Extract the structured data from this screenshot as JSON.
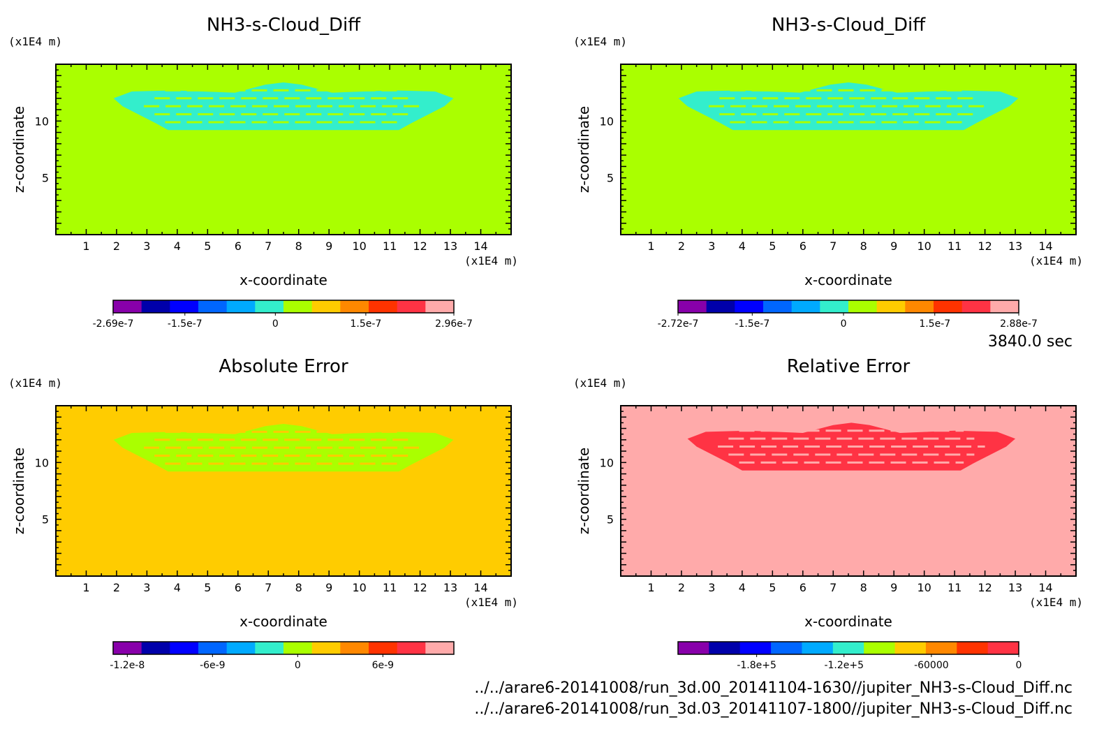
{
  "figure": {
    "time_label": "3840.0 sec",
    "footer_lines": [
      "../../arare6-20141008/run_3d.00_20141104-1630//jupiter_NH3-s-Cloud_Diff.nc",
      "../../arare6-20141008/run_3d.03_20141107-1800//jupiter_NH3-s-Cloud_Diff.nc"
    ]
  },
  "chart_data": [
    {
      "type": "heatmap",
      "title": "NH3-s-Cloud_Diff",
      "xlabel": "x-coordinate",
      "ylabel": "z-coordinate",
      "x_unit": "(x1E4 m)",
      "y_unit": "(x1E4 m)",
      "xlim": [
        0,
        15
      ],
      "ylim": [
        0,
        15
      ],
      "x_ticks": [
        1,
        2,
        3,
        4,
        5,
        6,
        7,
        8,
        9,
        10,
        11,
        12,
        13,
        14
      ],
      "y_ticks": [
        5,
        10
      ],
      "field": {
        "background": "#aaff00",
        "pattern": "#33eecc",
        "pattern_extent_x": [
          1.9,
          13.1
        ],
        "pattern_extent_z": [
          9.2,
          13.4
        ]
      },
      "colorbar": {
        "colors": [
          "#8800aa",
          "#0000aa",
          "#0000ff",
          "#0066ff",
          "#00aaff",
          "#33eecc",
          "#aaff00",
          "#ffcc00",
          "#ff8800",
          "#ff3300",
          "#ff3344",
          "#ffaaaa"
        ],
        "labels": [
          "-2.69e-7",
          "-1.5e-7",
          "0",
          "1.5e-7",
          "2.96e-7"
        ],
        "label_values": [
          -2.69e-07,
          -1.5e-07,
          0,
          1.5e-07,
          2.96e-07
        ],
        "range": [
          -2.69e-07,
          2.96e-07
        ]
      }
    },
    {
      "type": "heatmap",
      "title": "NH3-s-Cloud_Diff",
      "xlabel": "x-coordinate",
      "ylabel": "z-coordinate",
      "x_unit": "(x1E4 m)",
      "y_unit": "(x1E4 m)",
      "xlim": [
        0,
        15
      ],
      "ylim": [
        0,
        15
      ],
      "x_ticks": [
        1,
        2,
        3,
        4,
        5,
        6,
        7,
        8,
        9,
        10,
        11,
        12,
        13,
        14
      ],
      "y_ticks": [
        5,
        10
      ],
      "field": {
        "background": "#aaff00",
        "pattern": "#33eecc",
        "pattern_extent_x": [
          1.9,
          13.1
        ],
        "pattern_extent_z": [
          9.2,
          13.4
        ]
      },
      "colorbar": {
        "colors": [
          "#8800aa",
          "#0000aa",
          "#0000ff",
          "#0066ff",
          "#00aaff",
          "#33eecc",
          "#aaff00",
          "#ffcc00",
          "#ff8800",
          "#ff3300",
          "#ff3344",
          "#ffaaaa"
        ],
        "labels": [
          "-2.72e-7",
          "-1.5e-7",
          "0",
          "1.5e-7",
          "2.88e-7"
        ],
        "label_values": [
          -2.72e-07,
          -1.5e-07,
          0,
          1.5e-07,
          2.88e-07
        ],
        "range": [
          -2.72e-07,
          2.88e-07
        ]
      }
    },
    {
      "type": "heatmap",
      "title": "Absolute Error",
      "xlabel": "x-coordinate",
      "ylabel": "z-coordinate",
      "x_unit": "(x1E4 m)",
      "y_unit": "(x1E4 m)",
      "xlim": [
        0,
        15
      ],
      "ylim": [
        0,
        15
      ],
      "x_ticks": [
        1,
        2,
        3,
        4,
        5,
        6,
        7,
        8,
        9,
        10,
        11,
        12,
        13,
        14
      ],
      "y_ticks": [
        5,
        10
      ],
      "field": {
        "background": "#ffcc00",
        "pattern": "#aaff00",
        "pattern_extent_x": [
          1.9,
          13.1
        ],
        "pattern_extent_z": [
          9.2,
          13.4
        ]
      },
      "colorbar": {
        "colors": [
          "#8800aa",
          "#0000aa",
          "#0000ff",
          "#0066ff",
          "#00aaff",
          "#33eecc",
          "#aaff00",
          "#ffcc00",
          "#ff8800",
          "#ff3300",
          "#ff3344",
          "#ffaaaa"
        ],
        "labels": [
          "-1.2e-8",
          "-6e-9",
          "0",
          "6e-9"
        ],
        "label_values": [
          -1.2e-08,
          -6e-09,
          0,
          6e-09
        ],
        "range": [
          -1.3e-08,
          1.1e-08
        ]
      }
    },
    {
      "type": "heatmap",
      "title": "Relative Error",
      "xlabel": "x-coordinate",
      "ylabel": "z-coordinate",
      "x_unit": "(x1E4 m)",
      "y_unit": "(x1E4 m)",
      "xlim": [
        0,
        15
      ],
      "ylim": [
        0,
        15
      ],
      "x_ticks": [
        1,
        2,
        3,
        4,
        5,
        6,
        7,
        8,
        9,
        10,
        11,
        12,
        13,
        14
      ],
      "y_ticks": [
        5,
        10
      ],
      "field": {
        "background": "#ffaaaa",
        "pattern": "#ff3344",
        "pattern_extent_x": [
          2.2,
          13.0
        ],
        "pattern_extent_z": [
          9.3,
          13.5
        ]
      },
      "colorbar": {
        "colors": [
          "#8800aa",
          "#0000aa",
          "#0000ff",
          "#0066ff",
          "#00aaff",
          "#33eecc",
          "#aaff00",
          "#ffcc00",
          "#ff8800",
          "#ff3300",
          "#ff3344"
        ],
        "labels": [
          "-1.8e+5",
          "-1.2e+5",
          "-60000",
          "0"
        ],
        "label_values": [
          -180000,
          -120000,
          -60000,
          0
        ],
        "range": [
          -234000,
          0
        ]
      }
    }
  ]
}
